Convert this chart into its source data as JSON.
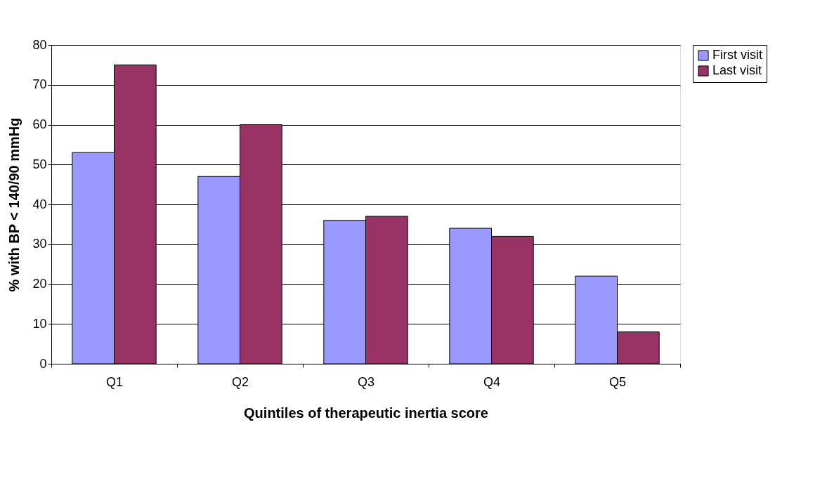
{
  "chart_data": {
    "type": "bar",
    "xlabel": "Quintiles of therapeutic inertia score",
    "ylabel": "% with BP < 140/90 mmHg",
    "categories": [
      "Q1",
      "Q2",
      "Q3",
      "Q4",
      "Q5"
    ],
    "series": [
      {
        "name": "First visit",
        "color": "#9999ff",
        "values": [
          53,
          47,
          36,
          34,
          22
        ]
      },
      {
        "name": "Last visit",
        "color": "#993366",
        "values": [
          75,
          60,
          37,
          32,
          8
        ]
      }
    ],
    "ylim": [
      0,
      80
    ],
    "yticks": [
      0,
      10,
      20,
      30,
      40,
      50,
      60,
      70,
      80
    ],
    "grid": "y",
    "legend": "right"
  }
}
